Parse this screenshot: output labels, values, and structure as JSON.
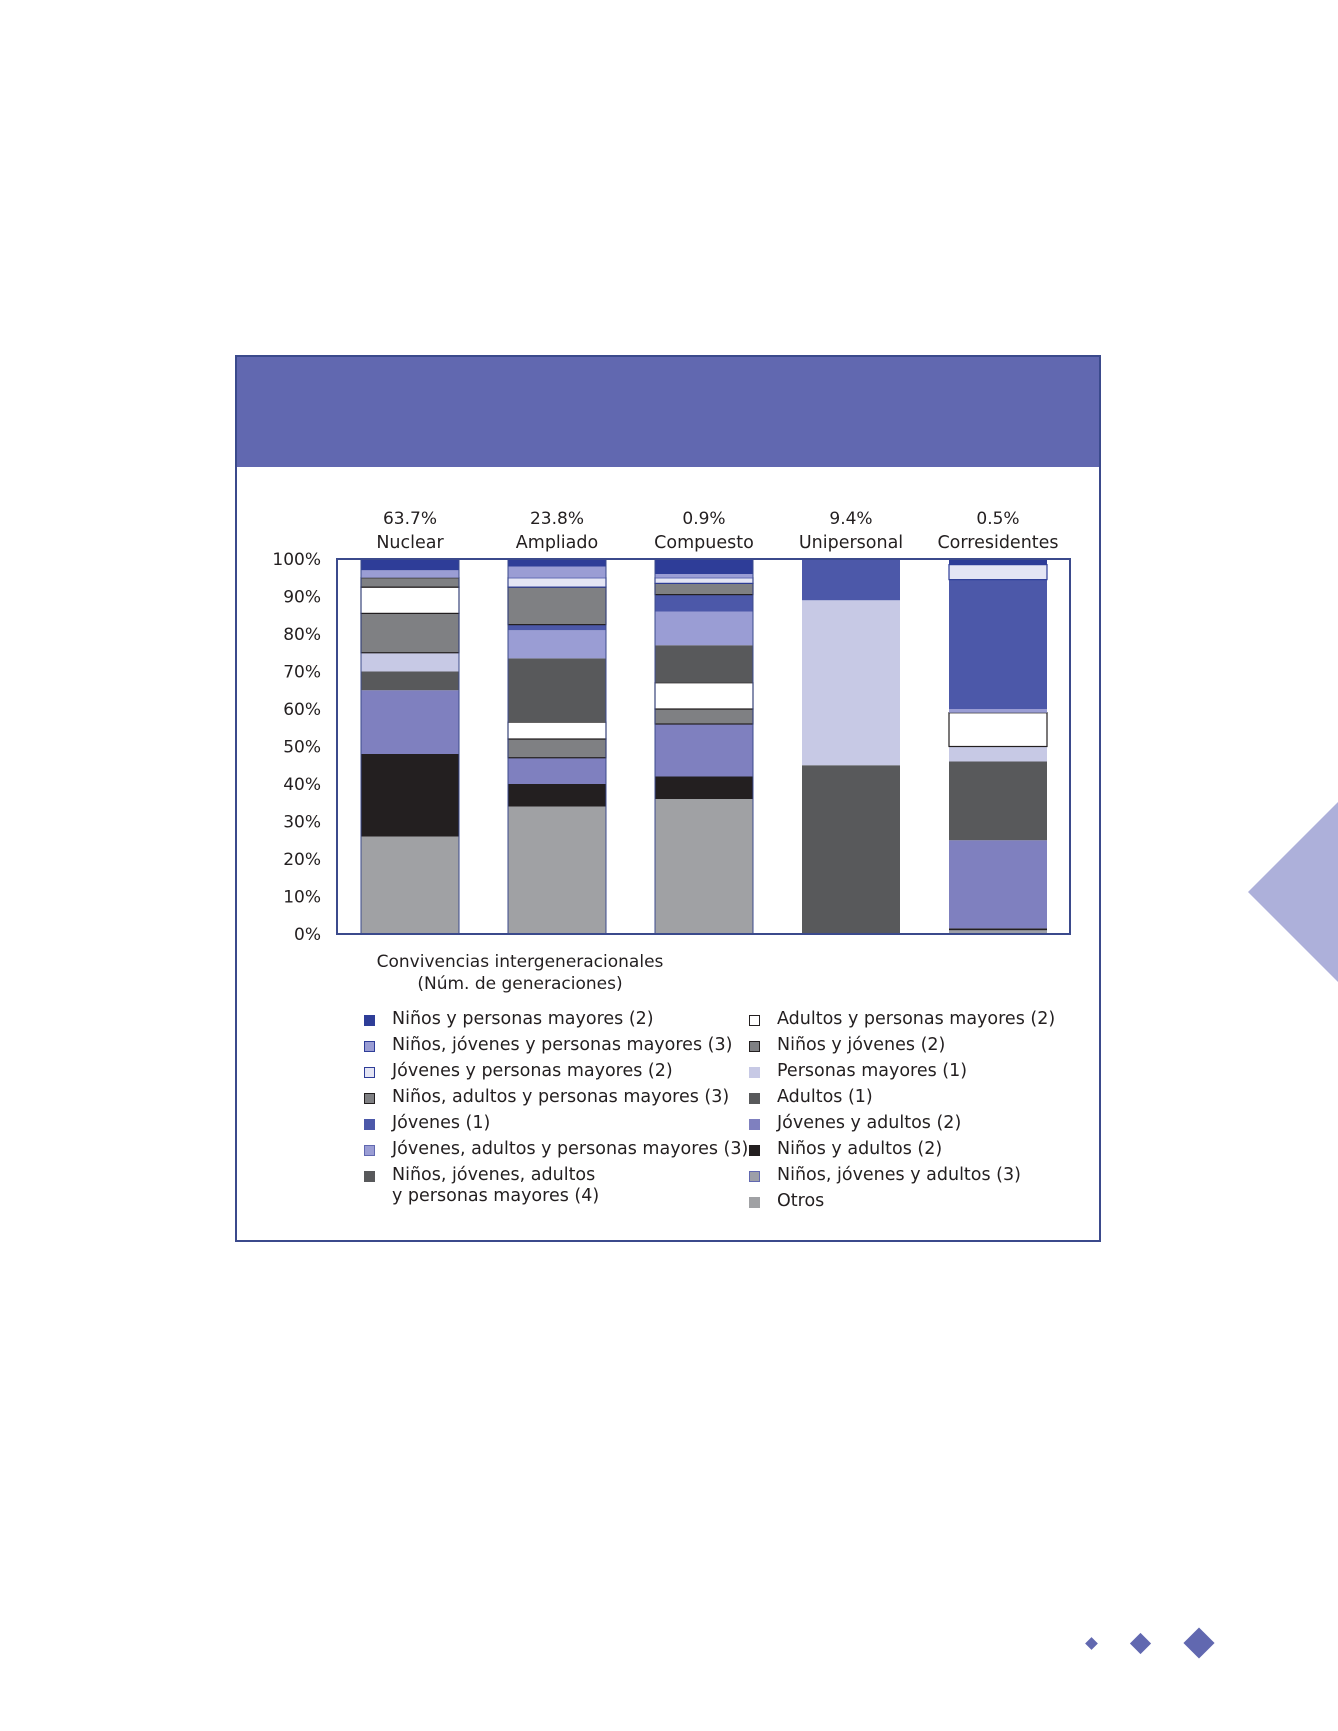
{
  "chart_data": {
    "type": "bar",
    "stacked": true,
    "categories": [
      "Nuclear",
      "Ampliado",
      "Compuesto",
      "Unipersonal",
      "Corresidentes"
    ],
    "category_shares": [
      "63.7%",
      "23.8%",
      "0.9%",
      "9.4%",
      "0.5%"
    ],
    "ylim": [
      0,
      100
    ],
    "yticks": [
      "0%",
      "10%",
      "20%",
      "30%",
      "40%",
      "50%",
      "60%",
      "70%",
      "80%",
      "90%",
      "100%"
    ],
    "xlabel": "Convivencias intergeneracionales\n(Núm. de generaciones)",
    "series": [
      {
        "name": "Otros",
        "color": "#a0a1a4",
        "values": [
          26,
          34,
          36,
          0,
          0
        ]
      },
      {
        "name": "Niños, jóvenes y adultos (3)",
        "color": "#9d9fa8",
        "values": [
          0,
          0,
          0,
          0,
          1
        ]
      },
      {
        "name": "Niños y adultos (2)",
        "color": "#231f20",
        "values": [
          22,
          6,
          6,
          0,
          0.5
        ]
      },
      {
        "name": "Jóvenes y adultos (2)",
        "color": "#7f80bf",
        "values": [
          17,
          7,
          14,
          0,
          23.5
        ]
      },
      {
        "name": "Adultos (1)",
        "color": "#58595b",
        "values": [
          5,
          0,
          0,
          45,
          21
        ]
      },
      {
        "name": "Personas mayores (1)",
        "color": "#c7c9e5",
        "values": [
          5,
          0,
          0,
          44,
          4
        ]
      },
      {
        "name": "Niños y jóvenes (2)",
        "color": "#7f8083",
        "values": [
          10.5,
          5,
          4,
          0,
          0
        ]
      },
      {
        "name": "Adultos y personas mayores (2)",
        "color": "#ffffff",
        "values": [
          7,
          4.5,
          7,
          0,
          9
        ]
      },
      {
        "name": "Niños, jóvenes, adultos\ny personas mayores (4)",
        "color": "#58595b",
        "values": [
          0,
          17,
          10,
          0,
          0
        ]
      },
      {
        "name": "Jóvenes, adultos y personas mayores (3)",
        "color": "#9a9dd4",
        "values": [
          0,
          7.5,
          9,
          0,
          1
        ]
      },
      {
        "name": "Jóvenes (1)",
        "color": "#4c58a9",
        "values": [
          0,
          1.5,
          4.5,
          11,
          34.5
        ]
      },
      {
        "name": "Niños, adultos y personas mayores (3)",
        "color": "#7f8083",
        "values": [
          2.5,
          10,
          3,
          0,
          0
        ]
      },
      {
        "name": "Jóvenes y personas mayores (2)",
        "color": "#e4e5f4",
        "values": [
          0,
          2.5,
          1.5,
          0,
          4
        ]
      },
      {
        "name": "Niños, jóvenes y personas mayores (3)",
        "color": "#9a9dd4",
        "values": [
          2,
          3,
          1,
          0,
          0
        ]
      },
      {
        "name": "Niños y personas mayores (2)",
        "color": "#2e3d98",
        "values": [
          3,
          2,
          4,
          0,
          1.5
        ]
      }
    ]
  },
  "legend": {
    "left": [
      {
        "label": "Niños y personas mayores (2)",
        "fill": "#2e3d98",
        "border": "#2e3d98"
      },
      {
        "label": "Niños, jóvenes y personas mayores (3)",
        "fill": "#9a9dd4",
        "border": "#2e3d98"
      },
      {
        "label": "Jóvenes y personas mayores (2)",
        "fill": "#e4e5f4",
        "border": "#2e3d98"
      },
      {
        "label": "Niños, adultos y personas mayores (3)",
        "fill": "#7f8083",
        "border": "#231f20"
      },
      {
        "label": "Jóvenes (1)",
        "fill": "#4c58a9",
        "border": "#4c58a9"
      },
      {
        "label": "Jóvenes, adultos y personas mayores (3)",
        "fill": "#9a9dd4",
        "border": "#6168b0"
      },
      {
        "label": "Niños, jóvenes, adultos\ny personas mayores (4)",
        "fill": "#58595b",
        "border": "#58595b"
      }
    ],
    "right": [
      {
        "label": "Adultos y personas mayores (2)",
        "fill": "#ffffff",
        "border": "#231f20"
      },
      {
        "label": "Niños y jóvenes (2)",
        "fill": "#7f8083",
        "border": "#231f20"
      },
      {
        "label": "Personas mayores (1)",
        "fill": "#c7c9e5",
        "border": "#c7c9e5"
      },
      {
        "label": "Adultos (1)",
        "fill": "#58595b",
        "border": "#58595b"
      },
      {
        "label": "Jóvenes y adultos (2)",
        "fill": "#7f80bf",
        "border": "#7f80bf"
      },
      {
        "label": "Niños y adultos (2)",
        "fill": "#231f20",
        "border": "#231f20"
      },
      {
        "label": "Niños, jóvenes y adultos (3)",
        "fill": "#9d9fa8",
        "border": "#6168b0"
      },
      {
        "label": "Otros",
        "fill": "#a0a1a4",
        "border": "#a0a1a4"
      }
    ]
  },
  "colors": {
    "header": "#6168b0",
    "frame": "#3b4a8c",
    "accent_light": "#adb0da"
  }
}
